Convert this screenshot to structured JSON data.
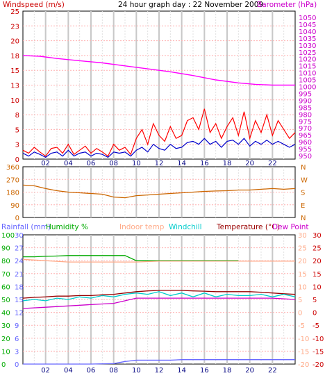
{
  "chart_data": [
    {
      "type": "line",
      "title": "24 hour graph day : 22 November 2009",
      "left_axis_label": "Windspeed (m/s)",
      "right_axis_label": "Barometer (hPa)",
      "left_ticks": [
        "25",
        "23",
        "20",
        "18",
        "15",
        "13",
        "10",
        "8",
        "5",
        "3",
        "0"
      ],
      "right_ticks": [
        "1050",
        "1045",
        "1040",
        "1035",
        "1030",
        "1025",
        "1020",
        "1015",
        "1010",
        "1005",
        "1000",
        "995",
        "990",
        "985",
        "980",
        "975",
        "970",
        "965",
        "960",
        "955",
        "950"
      ],
      "x_ticks": [
        "02",
        "04",
        "06",
        "08",
        "10",
        "12",
        "14",
        "16",
        "18",
        "20",
        "22"
      ],
      "xlim": [
        0,
        24
      ],
      "ylim_left": [
        0,
        25
      ],
      "ylim_right": [
        950,
        1050
      ],
      "series": [
        {
          "color": "#ff00ff",
          "x": [
            0,
            1.5,
            3,
            5,
            7,
            9,
            11,
            13,
            15,
            17,
            19,
            20.5,
            22,
            24
          ],
          "values": [
            1020,
            1019.5,
            1018,
            1016.5,
            1015,
            1013,
            1011,
            1009,
            1006.5,
            1003.5,
            1001.5,
            1000.5,
            1000,
            1000
          ]
        },
        {
          "color": "#ff0000",
          "x": [
            0,
            0.5,
            1,
            1.5,
            2,
            2.5,
            3,
            3.5,
            4,
            4.5,
            5,
            5.5,
            6,
            6.5,
            7,
            7.5,
            8,
            8.5,
            9,
            9.5,
            10,
            10.5,
            11,
            11.5,
            12,
            12.5,
            13,
            13.5,
            14,
            14.5,
            15,
            15.5,
            16,
            16.5,
            17,
            17.5,
            18,
            18.5,
            19,
            19.5,
            20,
            20.5,
            21,
            21.5,
            22,
            22.5,
            23,
            23.5,
            24
          ],
          "values": [
            1.5,
            1,
            2,
            1.2,
            0.5,
            1.8,
            2,
            1,
            2.5,
            0.8,
            1.5,
            2.2,
            1,
            1.8,
            1.2,
            0.5,
            2.5,
            1.5,
            2,
            0.8,
            3.5,
            5,
            2.5,
            6,
            4,
            3,
            5.5,
            3.5,
            4,
            6.5,
            7,
            5,
            8.5,
            4.5,
            6,
            3.5,
            5.5,
            7,
            4,
            8,
            3.5,
            6.5,
            4.5,
            7.5,
            4,
            6.5,
            5,
            3.5,
            4.5
          ]
        },
        {
          "color": "#0000cc",
          "x": [
            0,
            0.5,
            1,
            1.5,
            2,
            2.5,
            3,
            3.5,
            4,
            4.5,
            5,
            5.5,
            6,
            6.5,
            7,
            7.5,
            8,
            8.5,
            9,
            9.5,
            10,
            10.5,
            11,
            11.5,
            12,
            12.5,
            13,
            13.5,
            14,
            14.5,
            15,
            15.5,
            16,
            16.5,
            17,
            17.5,
            18,
            18.5,
            19,
            19.5,
            20,
            20.5,
            21,
            21.5,
            22,
            22.5,
            23,
            23.5,
            24
          ],
          "values": [
            1,
            0.5,
            1.2,
            0.8,
            0.3,
            1,
            1.2,
            0.5,
            1.5,
            0.5,
            1,
            1.2,
            0.5,
            1,
            0.8,
            0.3,
            1.2,
            1,
            1.2,
            0.5,
            1.5,
            2,
            1.2,
            2.5,
            1.8,
            1.5,
            2.5,
            1.8,
            2,
            2.8,
            3,
            2.5,
            3.5,
            2.5,
            3,
            2,
            3,
            3.2,
            2.5,
            3.5,
            2.2,
            3,
            2.5,
            3.2,
            2.5,
            3,
            2.5,
            2,
            2.5
          ]
        }
      ]
    },
    {
      "type": "line",
      "left_ticks": [
        "360",
        "270",
        "180",
        "90",
        "0"
      ],
      "right_ticks": [
        "N",
        "W",
        "S",
        "E",
        "N"
      ],
      "xlim": [
        0,
        24
      ],
      "ylim": [
        0,
        360
      ],
      "series": [
        {
          "color": "#cc6600",
          "x": [
            0,
            1,
            2,
            3,
            4,
            5,
            6,
            7,
            8,
            9,
            10,
            11,
            12,
            13,
            14,
            15,
            16,
            17,
            18,
            19,
            20,
            21,
            22,
            23,
            24
          ],
          "values": [
            230,
            225,
            205,
            190,
            180,
            175,
            170,
            165,
            145,
            140,
            155,
            160,
            165,
            170,
            175,
            180,
            185,
            188,
            190,
            195,
            195,
            200,
            205,
            200,
            205
          ]
        }
      ]
    },
    {
      "type": "line",
      "legend": [
        "Rainfall (mm)",
        "Humidity %",
        "Indoor temp",
        "Windchill",
        "Temperature (°C)",
        "Dew Point"
      ],
      "left_ticks_rain": [
        "30",
        "27",
        "24",
        "21",
        "18",
        "15",
        "12",
        "9",
        "6",
        "3",
        "0"
      ],
      "left_ticks_hum": [
        "100",
        "90",
        "80",
        "70",
        "60",
        "50",
        "40",
        "30",
        "20",
        "10",
        "0"
      ],
      "right_ticks_a": [
        "30",
        "25",
        "20",
        "15",
        "10",
        "5",
        "0",
        "-5",
        "-10",
        "-15",
        "-20"
      ],
      "right_ticks_b": [
        "30",
        "25",
        "20",
        "15",
        "10",
        "5",
        "0",
        "-5",
        "-10",
        "-15",
        "-20"
      ],
      "xlim": [
        0,
        24
      ],
      "ylim": [
        -20,
        30
      ],
      "series": [
        {
          "name": "Humidity %",
          "color": "#00aa00",
          "x": [
            0,
            1,
            2,
            3,
            4,
            5,
            6,
            7,
            8,
            9,
            10,
            11,
            12,
            13,
            14,
            15,
            16,
            17,
            18,
            19
          ],
          "values": [
            21.5,
            21.5,
            21.7,
            21.8,
            22,
            22,
            22,
            22,
            22,
            22,
            20,
            20,
            20,
            20,
            20,
            20,
            20,
            20,
            20,
            20
          ]
        },
        {
          "name": "Indoor temp",
          "color": "#ffaa88",
          "x": [
            0,
            2,
            4,
            6,
            8,
            10,
            12,
            14,
            16,
            18,
            20,
            22,
            24
          ],
          "values": [
            20.5,
            20,
            19.5,
            19.5,
            19.5,
            19.5,
            19.8,
            19.8,
            19.8,
            19.8,
            19.8,
            19.8,
            19.8
          ]
        },
        {
          "name": "Temperature (°C)",
          "color": "#990000",
          "x": [
            0,
            1,
            2,
            3,
            4,
            5,
            6,
            7,
            8,
            9,
            10,
            11,
            12,
            13,
            14,
            15,
            16,
            17,
            18,
            19,
            20,
            21,
            22,
            23,
            24
          ],
          "values": [
            5.5,
            5.8,
            6,
            6.3,
            6.3,
            6.5,
            6.5,
            6.8,
            7,
            7.5,
            8,
            8.3,
            8.5,
            8.5,
            8.5,
            8.3,
            8.2,
            8,
            8,
            8,
            8,
            7.8,
            7.5,
            7.2,
            7
          ]
        },
        {
          "name": "Windchill",
          "color": "#00cccc",
          "x": [
            0,
            1,
            2,
            3,
            4,
            5,
            6,
            7,
            8,
            9,
            10,
            11,
            12,
            13,
            14,
            15,
            16,
            17,
            18,
            19,
            20,
            21,
            22,
            23,
            24
          ],
          "values": [
            4.5,
            5,
            4.5,
            5.5,
            5,
            6,
            5.5,
            6.5,
            6,
            7,
            7.5,
            7,
            8,
            6.5,
            7.5,
            6,
            7.5,
            6,
            7,
            6.5,
            6.5,
            7,
            6,
            7,
            6
          ]
        },
        {
          "name": "Dew Point",
          "color": "#cc00cc",
          "x": [
            0,
            2,
            4,
            6,
            8,
            10,
            12,
            14,
            16,
            18,
            20,
            22,
            24
          ],
          "values": [
            1.5,
            2,
            2.5,
            3,
            3.5,
            5.5,
            5.5,
            5.5,
            5.5,
            5.5,
            5.5,
            5.5,
            5
          ]
        },
        {
          "name": "Rainfall (mm)",
          "color": "#6666ff",
          "x": [
            0,
            2,
            4,
            6,
            8,
            9,
            10,
            11,
            12,
            13,
            14,
            15,
            16,
            18,
            20,
            22,
            24
          ],
          "values": [
            -20,
            -20,
            -20,
            -20,
            -19.8,
            -19,
            -18.5,
            -18.5,
            -18.5,
            -18.5,
            -18.3,
            -18.3,
            -18.3,
            -18.3,
            -18.3,
            -18.3,
            -18.3
          ]
        }
      ]
    }
  ]
}
